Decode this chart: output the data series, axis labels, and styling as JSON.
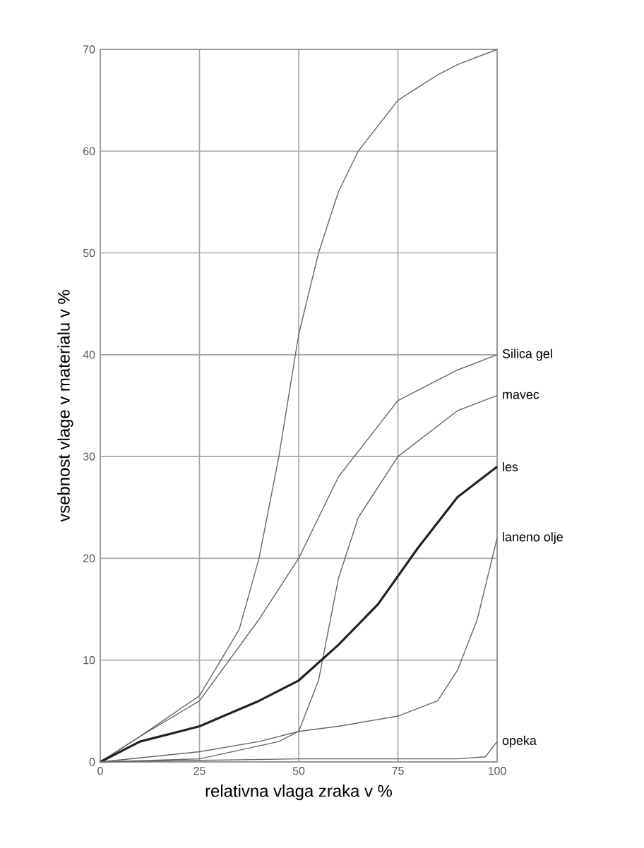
{
  "chart_data": {
    "type": "line",
    "xlabel": "relativna vlaga zraka v %",
    "ylabel": "vsebnost vlage v materialu v %",
    "xlim": [
      0,
      100
    ],
    "ylim": [
      0,
      70
    ],
    "xticks": [
      0,
      25,
      50,
      75,
      100
    ],
    "yticks": [
      0,
      10,
      20,
      30,
      40,
      50,
      60,
      70
    ],
    "grid": true,
    "marker": "none",
    "line_style": "solid",
    "series": [
      {
        "color": "#666666",
        "x": [
          0,
          10,
          25,
          35,
          40,
          45,
          50,
          55,
          60,
          65,
          75,
          85,
          90,
          100
        ],
        "values": [
          0,
          2.5,
          6.5,
          13,
          20,
          30,
          42,
          50,
          56,
          60,
          65,
          67.5,
          68.5,
          70
        ]
      },
      {
        "name": "Silica gel",
        "color": "#666666",
        "x": [
          0,
          10,
          25,
          40,
          50,
          60,
          70,
          75,
          90,
          100
        ],
        "values": [
          0,
          2.5,
          6,
          14,
          20,
          28,
          33,
          35.5,
          38.5,
          40
        ]
      },
      {
        "name": "mavec",
        "color": "#666666",
        "x": [
          0,
          25,
          45,
          50,
          55,
          60,
          65,
          75,
          90,
          100
        ],
        "values": [
          0,
          0.3,
          2,
          3,
          8,
          18,
          24,
          30,
          34.5,
          36
        ]
      },
      {
        "name": "les",
        "color": "#222222",
        "x": [
          0,
          10,
          25,
          40,
          50,
          60,
          70,
          80,
          90,
          100
        ],
        "values": [
          0,
          2,
          3.5,
          6,
          8,
          11.5,
          15.5,
          21,
          26,
          29
        ]
      },
      {
        "name": "laneno olje",
        "color": "#666666",
        "x": [
          0,
          25,
          40,
          50,
          60,
          75,
          85,
          90,
          95,
          100
        ],
        "values": [
          0,
          1,
          2,
          3,
          3.5,
          4.5,
          6,
          9,
          14,
          22
        ]
      },
      {
        "name": "opeka",
        "color": "#666666",
        "x": [
          0,
          50,
          90,
          97,
          100
        ],
        "values": [
          0,
          0.3,
          0.3,
          0.5,
          2
        ]
      }
    ]
  }
}
